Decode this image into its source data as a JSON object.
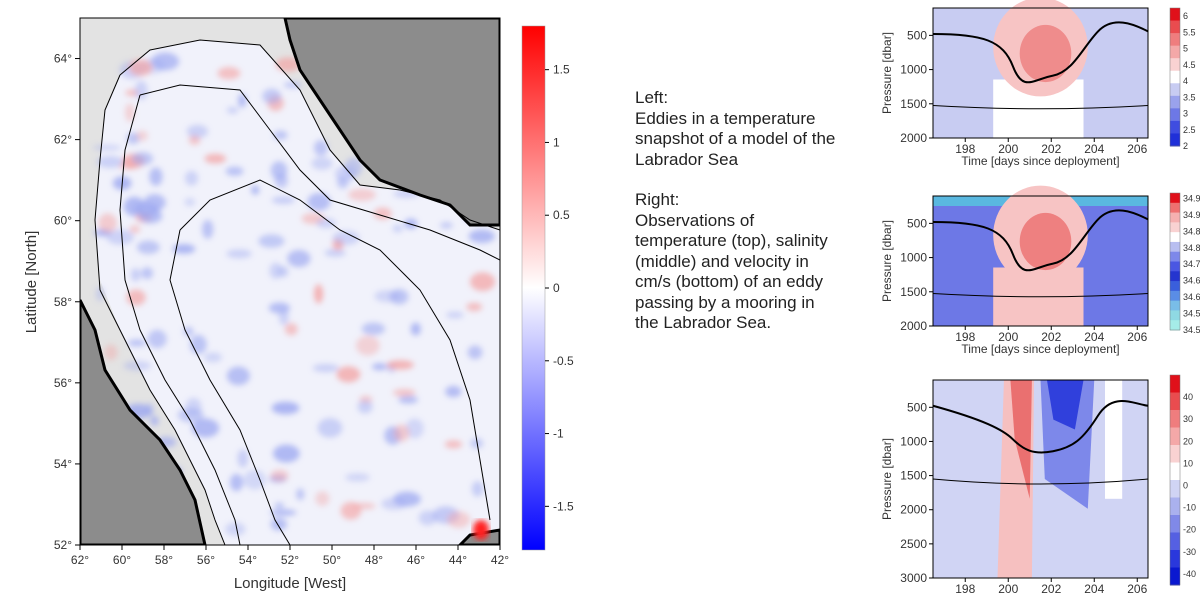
{
  "description_text": {
    "left_heading": "Left:",
    "left_body": "Eddies in a temperature snapshot of a model of the Labrador Sea",
    "right_heading": "Right:",
    "right_body": "Observations of temperature (top), salinity (middle) and velocity in cm/s (bottom) of an eddy passing by a mooring in the Labrador Sea."
  },
  "chart_data": [
    {
      "type": "heatmap",
      "title": "",
      "xlabel": "Longitude [West]",
      "ylabel": "Latitude [North]",
      "xlim": [
        62,
        42
      ],
      "ylim": [
        52,
        65
      ],
      "xticks": [
        "62°",
        "60°",
        "58°",
        "56°",
        "54°",
        "52°",
        "50°",
        "48°",
        "46°",
        "44°",
        "42°"
      ],
      "yticks": [
        "52°",
        "54°",
        "56°",
        "58°",
        "60°",
        "62°",
        "64°"
      ],
      "colorbar": {
        "ticks": [
          "1.5",
          "1",
          "0.5",
          "0",
          "-0.5",
          "-1",
          "-1.5"
        ],
        "range": [
          -1.8,
          1.8
        ],
        "colors": [
          "#0000ff",
          "#ffffff",
          "#ff0000"
        ]
      },
      "land_color": "#888888",
      "shelf_color": "#e3e3e3"
    },
    {
      "type": "heatmap",
      "title": "",
      "xlabel": "Time [days since deployment]",
      "ylabel": "Pressure [dbar]",
      "xlim": [
        196.5,
        206.5
      ],
      "ylim": [
        2000,
        100
      ],
      "xticks": [
        "198",
        "200",
        "202",
        "204",
        "206"
      ],
      "yticks": [
        "500",
        "1000",
        "1500",
        "2000"
      ],
      "colorbar": {
        "ticks": [
          "6",
          "5.5",
          "5",
          "4.5",
          "4",
          "3.5",
          "3",
          "2.5",
          "2"
        ],
        "range": [
          2,
          6.25
        ]
      }
    },
    {
      "type": "heatmap",
      "title": "",
      "xlabel": "Time [days since deployment]",
      "ylabel": "Pressure [dbar]",
      "xlim": [
        196.5,
        206.5
      ],
      "ylim": [
        2000,
        100
      ],
      "xticks": [
        "198",
        "200",
        "202",
        "204",
        "206"
      ],
      "yticks": [
        "500",
        "1000",
        "1500",
        "2000"
      ],
      "colorbar": {
        "ticks": [
          "34.98",
          "34.92",
          "34.86",
          "34.8",
          "34.74",
          "34.68",
          "34.62",
          "34.56",
          "34.5"
        ],
        "range": [
          34.5,
          35.0
        ]
      }
    },
    {
      "type": "heatmap",
      "title": "",
      "xlabel": "",
      "ylabel": "Pressure [dbar]",
      "xlim": [
        196.5,
        206.5
      ],
      "ylim": [
        3000,
        100
      ],
      "xticks": [
        "198",
        "200",
        "202",
        "204",
        "206"
      ],
      "yticks": [
        "500",
        "1000",
        "1500",
        "2000",
        "2500",
        "3000"
      ],
      "colorbar": {
        "ticks": [
          "40",
          "30",
          "20",
          "10",
          "0",
          "-10",
          "-20",
          "-30",
          "-40"
        ],
        "range": [
          -45,
          50
        ]
      }
    }
  ]
}
